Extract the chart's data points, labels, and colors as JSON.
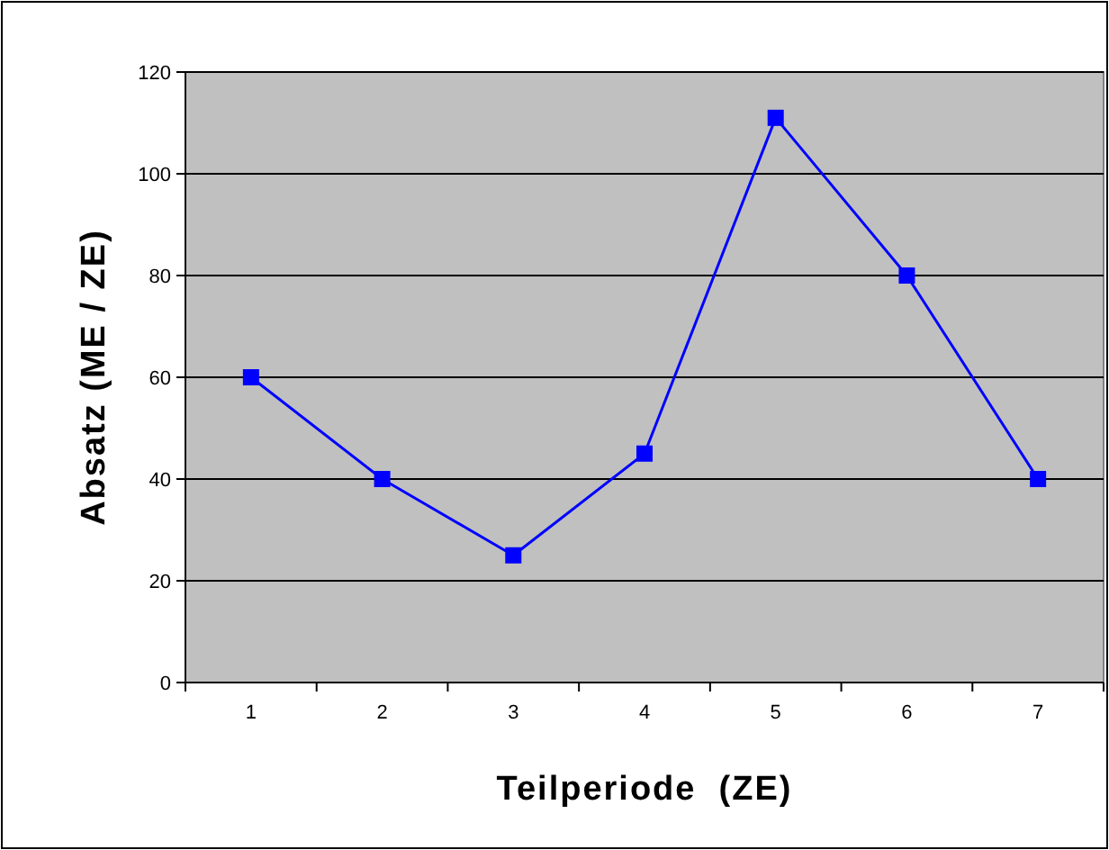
{
  "chart_data": {
    "type": "line",
    "xlabel": "Teilperiode  (ZE)",
    "ylabel": "Absatz (ME / ZE)",
    "categories": [
      "1",
      "2",
      "3",
      "4",
      "5",
      "6",
      "7"
    ],
    "series": [
      {
        "color": "#0000ff",
        "values": [
          60,
          40,
          25,
          45,
          111,
          80,
          40
        ]
      }
    ],
    "ylim": [
      0,
      120
    ],
    "yticks": [
      0,
      20,
      40,
      60,
      80,
      100,
      120
    ],
    "grid": "y",
    "marker": "square",
    "line_style": "solid"
  }
}
